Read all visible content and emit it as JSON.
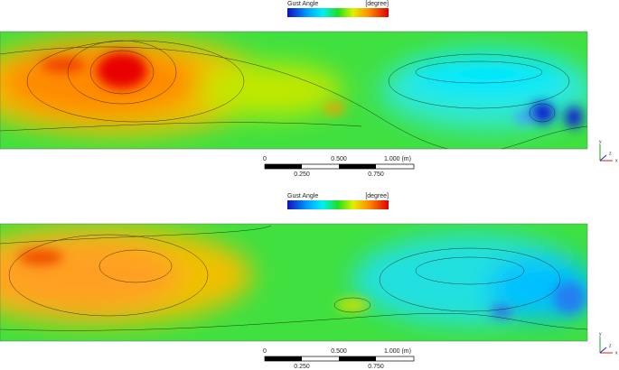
{
  "panels": [
    {
      "legend": {
        "title": "Gust Angle",
        "unit": "[degree]"
      },
      "scale_bar": {
        "top_labels": [
          "0",
          "0.500",
          "1.000 (m)"
        ],
        "bottom_labels": [
          "0.250",
          "0.750"
        ]
      },
      "triad": [
        "y",
        "z",
        "x"
      ]
    },
    {
      "legend": {
        "title": "Gust Angle",
        "unit": "[degree]"
      },
      "scale_bar": {
        "top_labels": [
          "0",
          "0.500",
          "1.000 (m)"
        ],
        "bottom_labels": [
          "0.250",
          "0.750"
        ]
      },
      "triad": [
        "y",
        "z",
        "x"
      ]
    }
  ]
}
